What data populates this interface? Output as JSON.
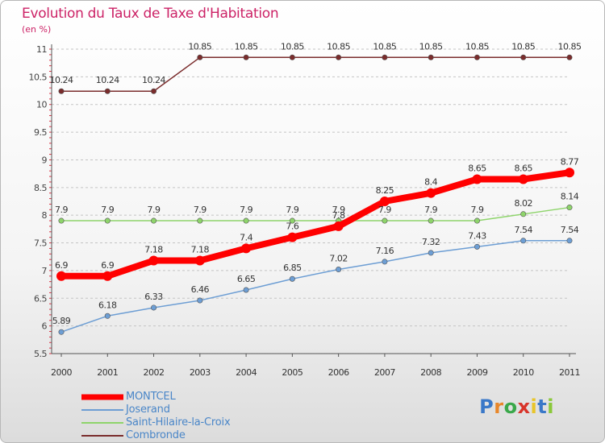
{
  "title": "Evolution du Taux de Taxe d'Habitation",
  "subtitle": "(en %)",
  "brand": {
    "letters": [
      "P",
      "r",
      "o",
      "x",
      "i",
      "t",
      "i"
    ],
    "colors": [
      "#3a78c8",
      "#e8872a",
      "#3aa84a",
      "#d8342a",
      "#e8c52a",
      "#3a78c8",
      "#8ac83a"
    ]
  },
  "chart_data": {
    "type": "line",
    "title": "Evolution du Taux de Taxe d'Habitation",
    "ylabel": "(en %)",
    "xlabel": "",
    "x": [
      "2000",
      "2001",
      "2002",
      "2003",
      "2004",
      "2005",
      "2006",
      "2007",
      "2008",
      "2009",
      "2010",
      "2011"
    ],
    "ylim": [
      5.5,
      11
    ],
    "yticks": [
      "5.5",
      "6",
      "6.5",
      "7",
      "7.5",
      "8",
      "8.5",
      "9",
      "9.5",
      "10",
      "10.5",
      "11"
    ],
    "grid": "horizontal dashed",
    "legend_position": "bottom-left",
    "series": [
      {
        "name": "MONTCEL",
        "color": "#ff0000",
        "values": [
          6.9,
          6.9,
          7.18,
          7.18,
          7.4,
          7.6,
          7.8,
          8.25,
          8.4,
          8.65,
          8.65,
          8.77
        ],
        "labels": [
          "6.9",
          "6.9",
          "7.18",
          "7.18",
          "7.4",
          "7.6",
          "7.8",
          "8.25",
          "8.4",
          "8.65",
          "8.65",
          "8.77"
        ]
      },
      {
        "name": "Joserand",
        "color": "#6d9ed4",
        "values": [
          5.89,
          6.18,
          6.33,
          6.46,
          6.65,
          6.85,
          7.02,
          7.16,
          7.32,
          7.43,
          7.54,
          7.54
        ],
        "labels": [
          "5.89",
          "6.18",
          "6.33",
          "6.46",
          "6.65",
          "6.85",
          "7.02",
          "7.16",
          "7.32",
          "7.43",
          "7.54",
          "7.54"
        ]
      },
      {
        "name": "Saint-Hilaire-la-Croix",
        "color": "#8ed46b",
        "values": [
          7.9,
          7.9,
          7.9,
          7.9,
          7.9,
          7.9,
          7.9,
          7.9,
          7.9,
          7.9,
          8.02,
          8.14
        ],
        "labels": [
          "7.9",
          "7.9",
          "7.9",
          "7.9",
          "7.9",
          "7.9",
          "7.9",
          "7.9",
          "7.9",
          "7.9",
          "8.02",
          "8.14"
        ]
      },
      {
        "name": "Combronde",
        "color": "#7a2c2c",
        "values": [
          10.24,
          10.24,
          10.24,
          10.85,
          10.85,
          10.85,
          10.85,
          10.85,
          10.85,
          10.85,
          10.85,
          10.85
        ],
        "labels": [
          "10.24",
          "10.24",
          "10.24",
          "10.85",
          "10.85",
          "10.85",
          "10.85",
          "10.85",
          "10.85",
          "10.85",
          "10.85",
          "10.85"
        ]
      }
    ]
  }
}
